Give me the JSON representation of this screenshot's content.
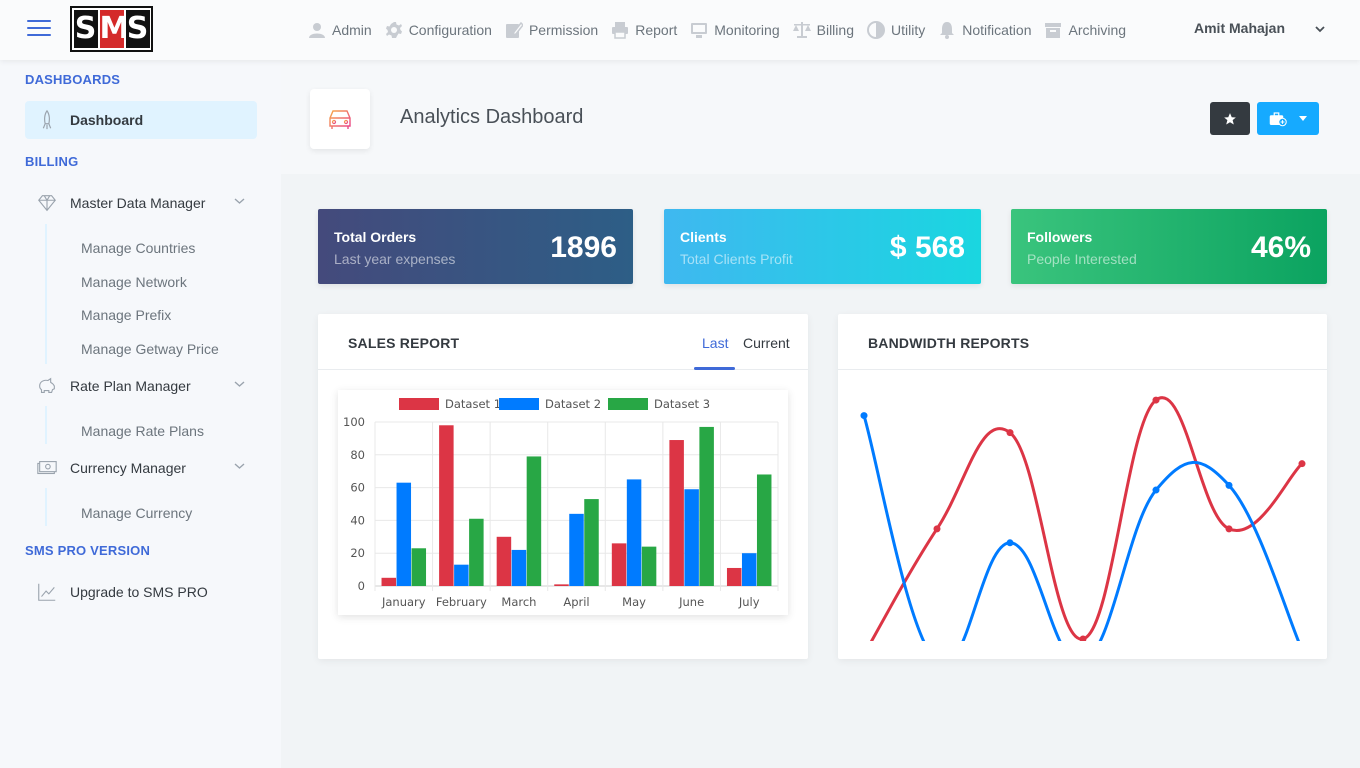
{
  "header": {
    "logo_text": "SMS",
    "nav": [
      {
        "label": "Admin",
        "icon": "user-icon"
      },
      {
        "label": "Configuration",
        "icon": "gear-icon"
      },
      {
        "label": "Permission",
        "icon": "edit-icon"
      },
      {
        "label": "Report",
        "icon": "print-icon"
      },
      {
        "label": "Monitoring",
        "icon": "monitor-icon"
      },
      {
        "label": "Billing",
        "icon": "balance-scale-icon"
      },
      {
        "label": "Utility",
        "icon": "half-circle-icon"
      },
      {
        "label": "Notification",
        "icon": "bell-icon"
      },
      {
        "label": "Archiving",
        "icon": "archive-icon"
      }
    ],
    "user_name": "Amit Mahajan"
  },
  "sidebar": {
    "sections": [
      {
        "label": "DASHBOARDS"
      },
      {
        "label": "BILLING"
      },
      {
        "label": "SMS PRO VERSION"
      }
    ],
    "dashboard": {
      "label": "Dashboard",
      "icon": "rocket-icon"
    },
    "master_data": {
      "label": "Master Data Manager",
      "icon": "diamond-icon",
      "children": [
        "Manage Countries",
        "Manage Network",
        "Manage Prefix",
        "Manage Getway Price"
      ]
    },
    "rate_plan": {
      "label": "Rate Plan Manager",
      "icon": "piggy-bank-icon",
      "children": [
        "Manage Rate Plans"
      ]
    },
    "currency": {
      "label": "Currency Manager",
      "icon": "cash-icon",
      "children": [
        "Manage Currency"
      ]
    },
    "upgrade": {
      "label": "Upgrade to SMS PRO",
      "icon": "graph-icon"
    }
  },
  "page": {
    "title": "Analytics Dashboard",
    "title_icon": "car-icon"
  },
  "stats": [
    {
      "title": "Total Orders",
      "subtitle": "Last year expenses",
      "value": "1896",
      "gradient": [
        "#444a7c",
        "#2d5e86"
      ]
    },
    {
      "title": "Clients",
      "subtitle": "Total Clients Profit",
      "value": "$ 568",
      "gradient": [
        "#3fb8f0",
        "#1ad6e0"
      ]
    },
    {
      "title": "Followers",
      "subtitle": "People Interested",
      "value": "46%",
      "gradient": [
        "#3ac47d",
        "#0ba360"
      ]
    }
  ],
  "sales_card": {
    "title": "SALES REPORT",
    "tabs": [
      "Last",
      "Current"
    ],
    "active_tab": "Last"
  },
  "bandwidth_card": {
    "title": "BANDWIDTH REPORTS"
  },
  "colors": {
    "accent": "#3f6ad8",
    "red": "#dc3545",
    "blue": "#007bff",
    "green": "#28a745"
  },
  "chart_data": [
    {
      "type": "bar",
      "categories": [
        "January",
        "February",
        "March",
        "April",
        "May",
        "June",
        "July"
      ],
      "series": [
        {
          "name": "Dataset 1",
          "color": "#dc3545",
          "values": [
            5,
            98,
            30,
            1,
            26,
            89,
            11
          ]
        },
        {
          "name": "Dataset 2",
          "color": "#007bff",
          "values": [
            63,
            13,
            22,
            44,
            65,
            59,
            20
          ]
        },
        {
          "name": "Dataset 3",
          "color": "#28a745",
          "values": [
            23,
            41,
            79,
            53,
            24,
            97,
            68
          ]
        }
      ],
      "yticks": [
        "0",
        "20",
        "40",
        "60",
        "80",
        "100"
      ],
      "ylim": [
        0,
        100
      ],
      "legend": "top",
      "grid": true
    },
    {
      "type": "line",
      "axes_visible": false,
      "x": [
        0,
        1,
        2,
        3,
        4,
        5,
        6
      ],
      "series": [
        {
          "color": "#dc3545",
          "values": [
            -65,
            16,
            78,
            -55,
            99,
            16,
            58
          ]
        },
        {
          "color": "#007bff",
          "values": [
            89,
            -70,
            7,
            -70,
            41,
            44,
            -62
          ]
        }
      ],
      "ylim": [
        -55,
        110
      ]
    }
  ]
}
